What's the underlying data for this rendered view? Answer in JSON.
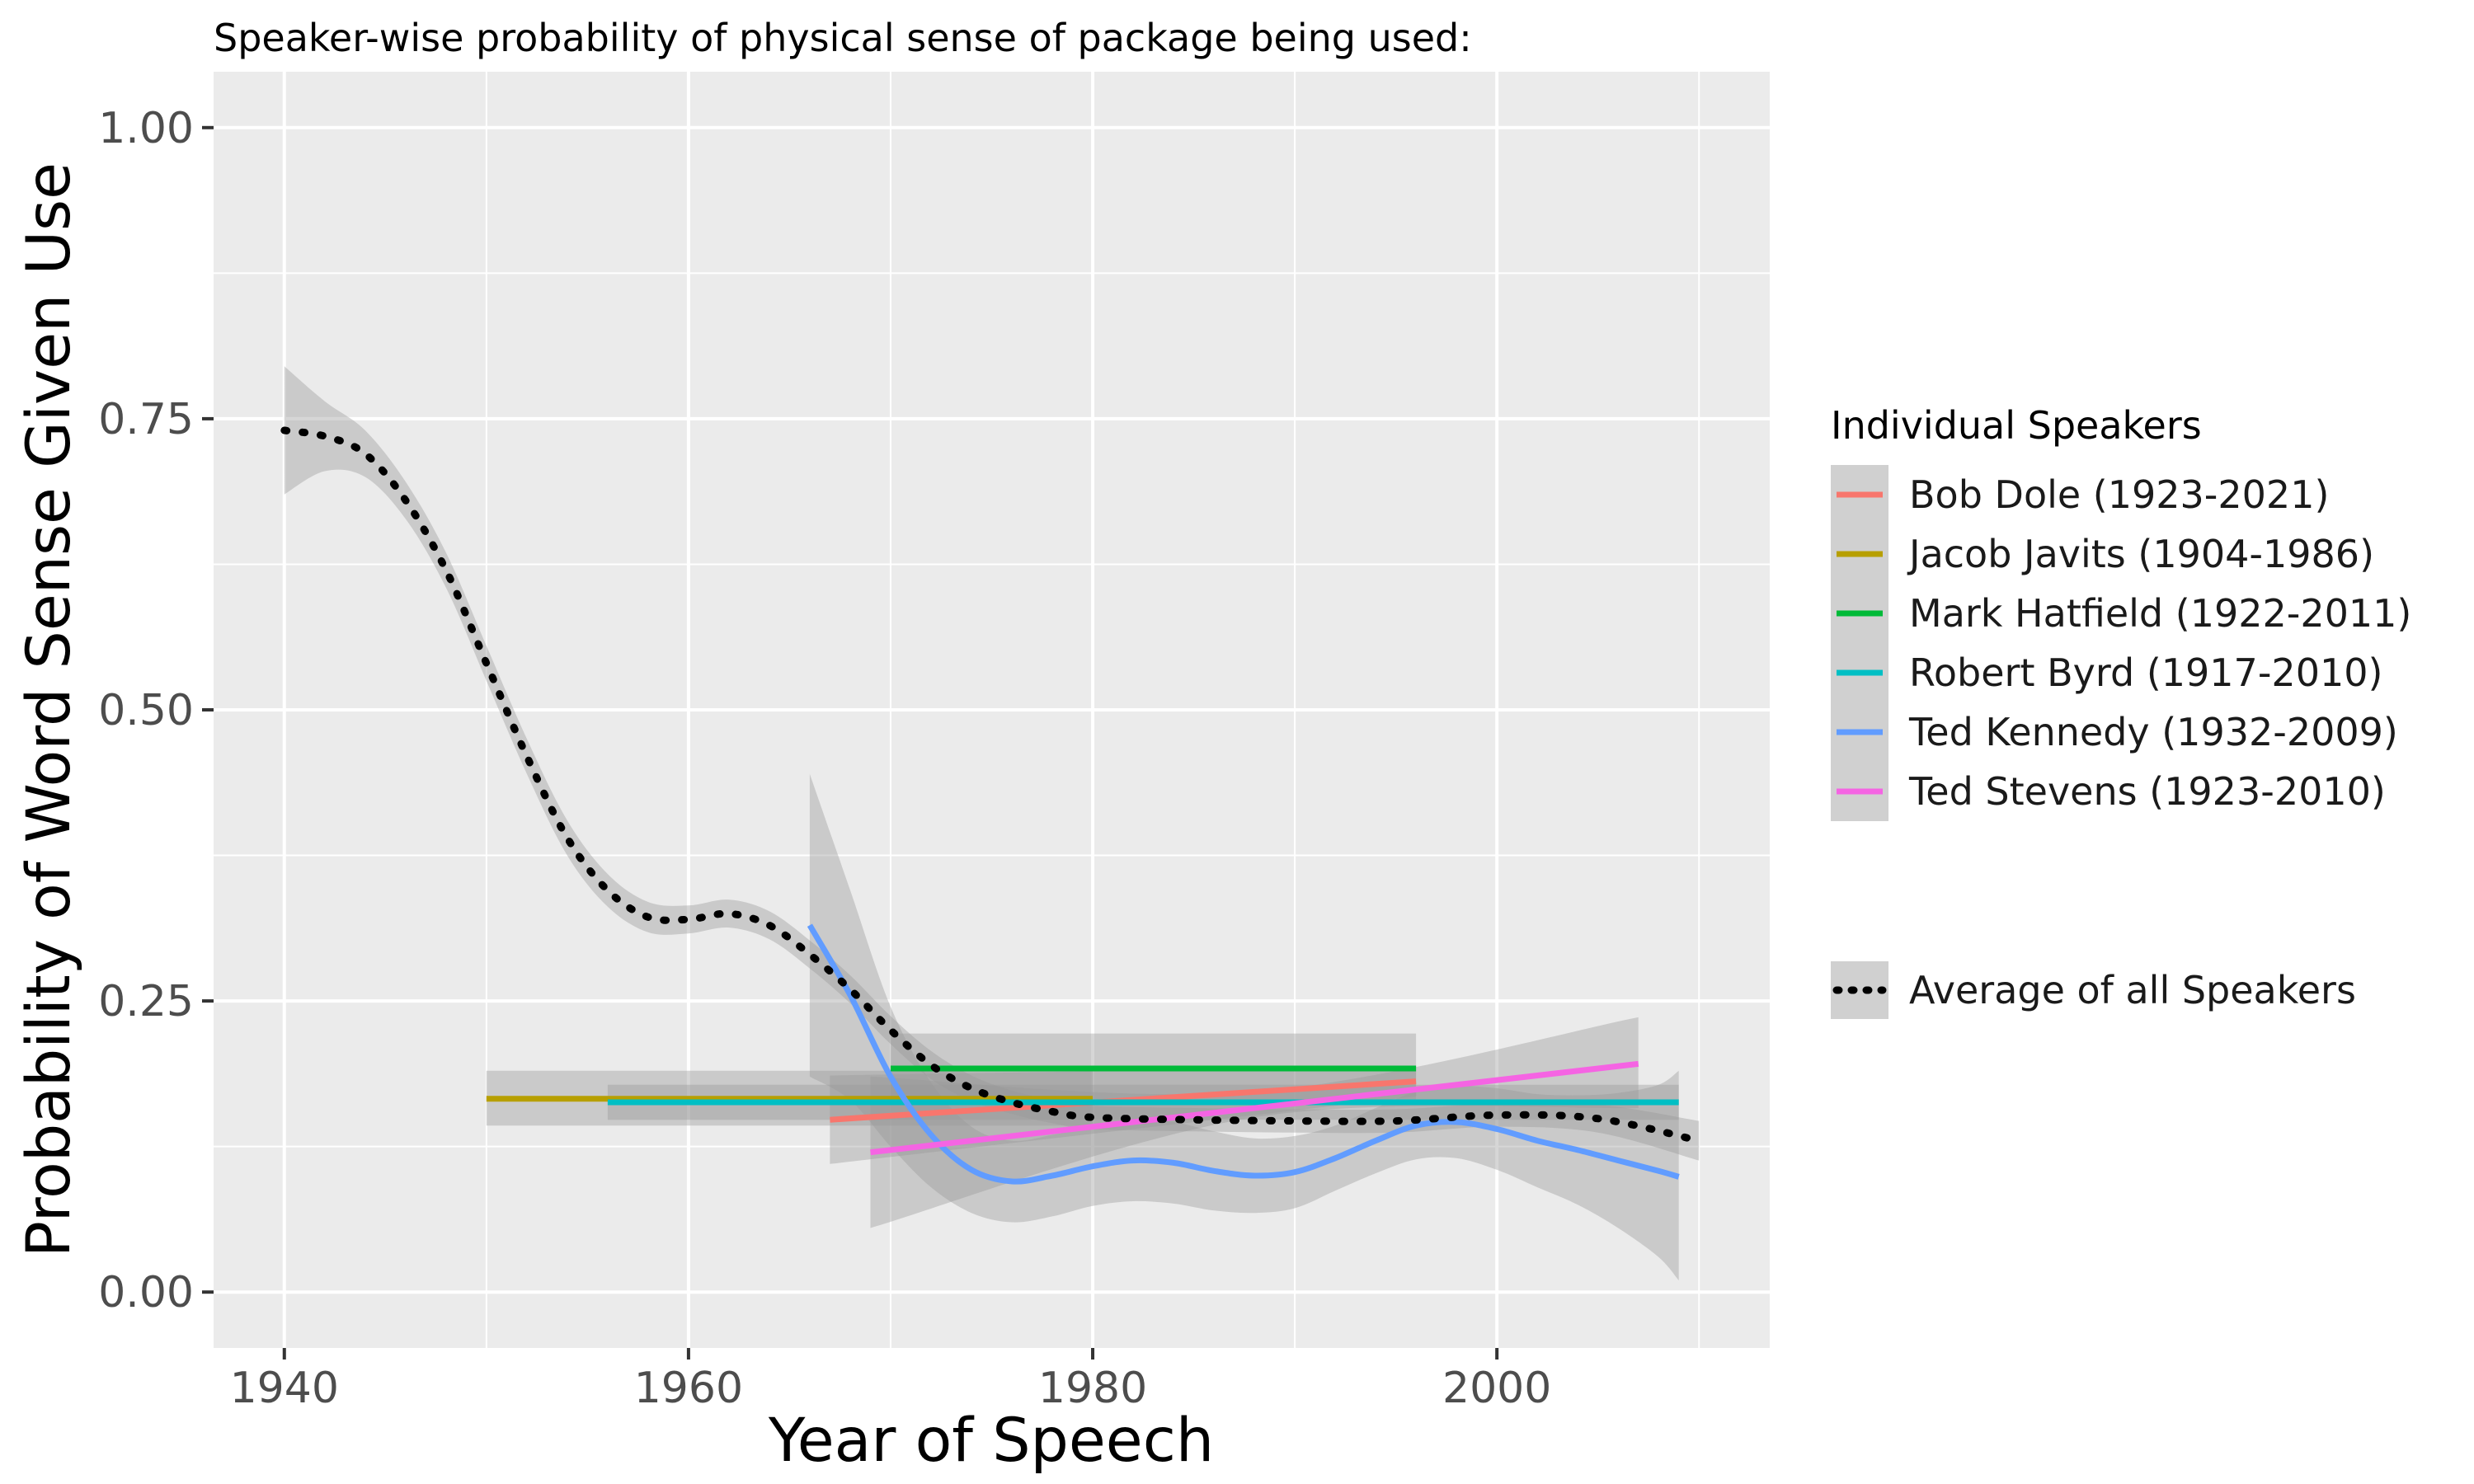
{
  "chart_data": {
    "type": "line",
    "title": "Speaker-wise probability of physical sense of package being used:",
    "xlabel": "Year of Speech",
    "ylabel": "Probability of Word Sense Given Use",
    "xlim": [
      1936.5,
      2013.5
    ],
    "ylim": [
      -0.048,
      1.048
    ],
    "x_ticks": [
      1940,
      1960,
      1980,
      2000
    ],
    "x_tick_labels": [
      "1940",
      "1960",
      "1980",
      "2000"
    ],
    "y_ticks": [
      0,
      0.25,
      0.5,
      0.75,
      1.0
    ],
    "y_tick_labels": [
      "0.00",
      "0.25",
      "0.50",
      "0.75",
      "1.00"
    ],
    "grid": true,
    "legend": {
      "title": "Individual Speakers",
      "placement": "right",
      "average_label": "Average of all Speakers"
    },
    "series": [
      {
        "name": "Bob Dole (1923-2021)",
        "color": "#F8766D",
        "x": [
          1967,
          1996
        ],
        "y": [
          0.148,
          0.181
        ],
        "band": {
          "x": [
            1967,
            1996
          ],
          "lower": [
            0.11,
            0.168
          ],
          "upper": [
            0.186,
            0.194
          ]
        }
      },
      {
        "name": "Jacob Javits (1904-1986)",
        "color": "#B79F00",
        "x": [
          1950,
          1980
        ],
        "y": [
          0.166,
          0.166
        ],
        "band": {
          "x": [
            1950,
            1980
          ],
          "lower": [
            0.143,
            0.143
          ],
          "upper": [
            0.19,
            0.19
          ]
        }
      },
      {
        "name": "Mark Hatfield (1922-2011)",
        "color": "#00BA38",
        "x": [
          1970,
          1996
        ],
        "y": [
          0.192,
          0.192
        ],
        "band": {
          "x": [
            1970,
            1996
          ],
          "lower": [
            0.162,
            0.162
          ],
          "upper": [
            0.222,
            0.222
          ]
        }
      },
      {
        "name": "Robert Byrd (1917-2010)",
        "color": "#00BFC4",
        "x": [
          1956,
          2009
        ],
        "y": [
          0.163,
          0.163
        ],
        "band": {
          "x": [
            1956,
            2009
          ],
          "lower": [
            0.148,
            0.148
          ],
          "upper": [
            0.178,
            0.178
          ]
        }
      },
      {
        "name": "Ted Kennedy (1932-2009)",
        "color": "#619CFF",
        "x": [
          1966,
          1968,
          1970,
          1972,
          1974,
          1976,
          1978,
          1980,
          1982,
          1984,
          1986,
          1988,
          1990,
          1992,
          1994,
          1996,
          1998,
          2000,
          2002,
          2004,
          2006,
          2008,
          2009
        ],
        "y": [
          0.315,
          0.255,
          0.185,
          0.135,
          0.105,
          0.095,
          0.1,
          0.108,
          0.113,
          0.111,
          0.104,
          0.1,
          0.103,
          0.115,
          0.13,
          0.143,
          0.146,
          0.14,
          0.13,
          0.122,
          0.113,
          0.104,
          0.099
        ],
        "band": {
          "x": [
            1966,
            1968,
            1970,
            1972,
            1974,
            1976,
            1978,
            1980,
            1982,
            1984,
            1986,
            1988,
            1990,
            1992,
            1994,
            1996,
            1998,
            2000,
            2002,
            2004,
            2006,
            2008,
            2009
          ],
          "lower": [
            0.185,
            0.165,
            0.125,
            0.09,
            0.068,
            0.06,
            0.065,
            0.074,
            0.078,
            0.076,
            0.07,
            0.068,
            0.072,
            0.087,
            0.102,
            0.114,
            0.115,
            0.105,
            0.09,
            0.075,
            0.055,
            0.03,
            0.01
          ],
          "upper": [
            0.445,
            0.345,
            0.245,
            0.18,
            0.142,
            0.13,
            0.135,
            0.142,
            0.148,
            0.146,
            0.138,
            0.132,
            0.134,
            0.143,
            0.158,
            0.172,
            0.177,
            0.175,
            0.17,
            0.169,
            0.171,
            0.178,
            0.19
          ]
        }
      },
      {
        "name": "Ted Stevens (1923-2010)",
        "color": "#F564E3",
        "x": [
          1969,
          2007
        ],
        "y": [
          0.12,
          0.196
        ],
        "band": {
          "x": [
            1969,
            1988,
            2007
          ],
          "lower": [
            0.055,
            0.15,
            0.158
          ],
          "upper": [
            0.185,
            0.172,
            0.236
          ]
        }
      }
    ],
    "average": {
      "name": "Average of all Speakers",
      "color": "#000000",
      "x": [
        1940,
        1942,
        1944,
        1946,
        1948,
        1950,
        1952,
        1954,
        1956,
        1958,
        1960,
        1962,
        1964,
        1966,
        1968,
        1970,
        1972,
        1974,
        1976,
        1978,
        1980,
        1985,
        1990,
        1995,
        2000,
        2005,
        2010
      ],
      "y": [
        0.74,
        0.735,
        0.72,
        0.68,
        0.62,
        0.54,
        0.46,
        0.39,
        0.345,
        0.322,
        0.32,
        0.325,
        0.315,
        0.29,
        0.26,
        0.225,
        0.195,
        0.175,
        0.163,
        0.155,
        0.15,
        0.148,
        0.147,
        0.147,
        0.152,
        0.149,
        0.13
      ],
      "band_half_width": [
        0.055,
        0.03,
        0.02,
        0.016,
        0.015,
        0.015,
        0.015,
        0.015,
        0.014,
        0.013,
        0.012,
        0.012,
        0.012,
        0.012,
        0.012,
        0.012,
        0.012,
        0.011,
        0.01,
        0.01,
        0.01,
        0.01,
        0.01,
        0.01,
        0.01,
        0.012,
        0.017
      ]
    }
  }
}
